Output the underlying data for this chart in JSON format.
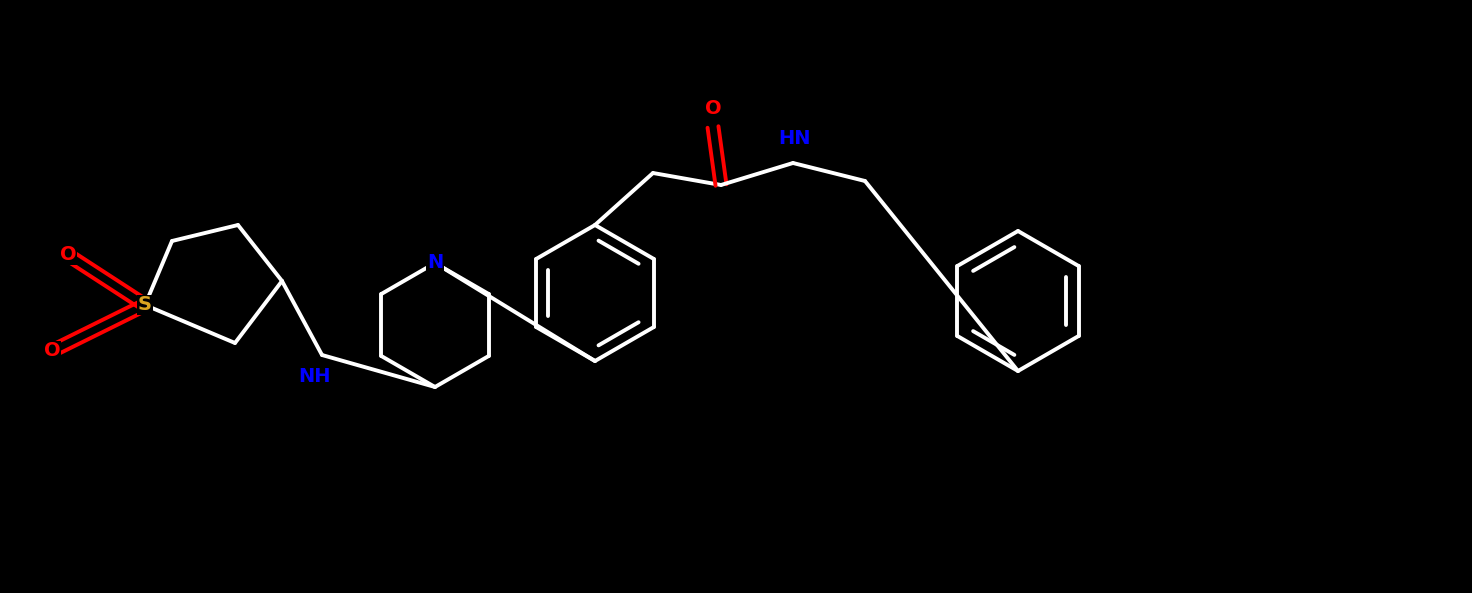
{
  "bg_color": "#000000",
  "N_color": "#0000FF",
  "O_color": "#FF0000",
  "S_color": "#DAA520",
  "bond_color": "#ffffff",
  "lw": 2.8,
  "dbg": 0.055,
  "fig_width": 14.72,
  "fig_height": 5.93,
  "xlim": [
    0,
    14.72
  ],
  "ylim": [
    0,
    5.93
  ]
}
